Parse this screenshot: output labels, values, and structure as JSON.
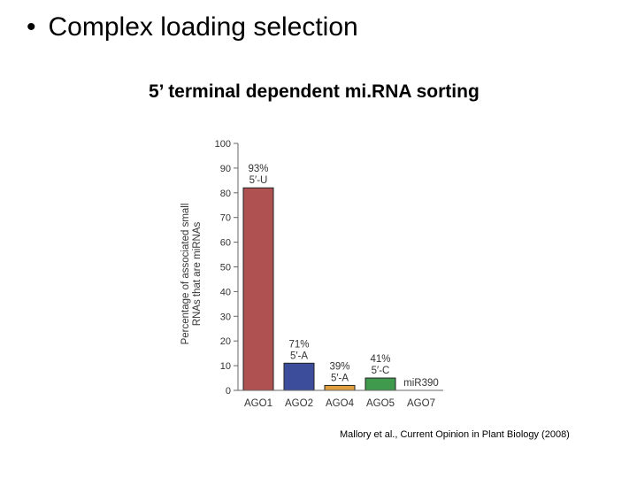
{
  "slide": {
    "bullet_char": "•",
    "bullet_text": "Complex loading selection",
    "subtitle": "5’ terminal dependent mi.RNA sorting",
    "citation": "Mallory et al., Current Opinion in Plant Biology (2008)"
  },
  "chart_data": {
    "type": "bar",
    "categories": [
      "AGO1",
      "AGO2",
      "AGO4",
      "AGO5",
      "AGO7"
    ],
    "values": [
      82,
      11,
      2,
      5,
      0
    ],
    "bar_labels": [
      [
        "93%",
        "5′-U"
      ],
      [
        "71%",
        "5′-A"
      ],
      [
        "39%",
        "5′-A"
      ],
      [
        "41%",
        "5′-C"
      ],
      [
        "miR390"
      ]
    ],
    "colors": [
      "#b05151",
      "#3c4d9c",
      "#e0a040",
      "#3f9a4e",
      "#ffffff"
    ],
    "ylabel_lines": [
      "Percentage of associated small",
      "RNAs that are miRNAs"
    ],
    "ylim": [
      0,
      100
    ],
    "yticks": [
      0,
      10,
      20,
      30,
      40,
      50,
      60,
      70,
      80,
      90,
      100
    ],
    "grid": false
  }
}
